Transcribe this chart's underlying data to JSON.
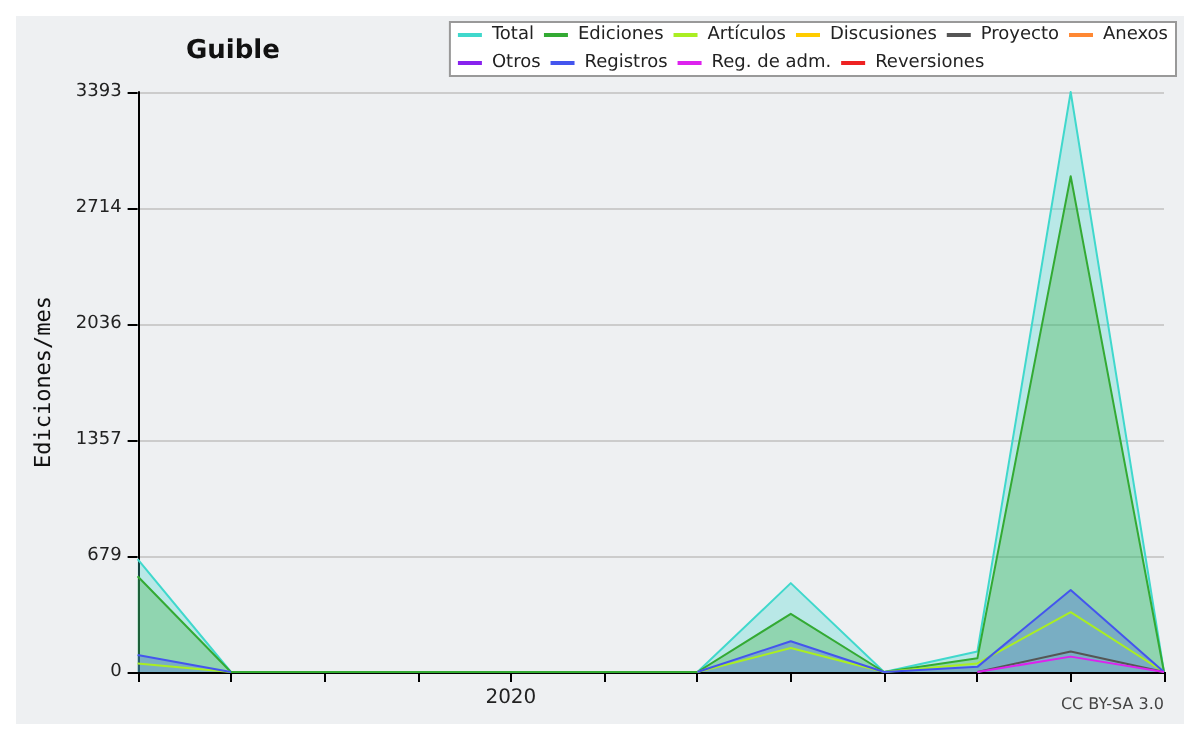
{
  "chart_data": {
    "type": "area",
    "title": "Guible",
    "ylabel": "Ediciones/mes",
    "annotations": [
      "CC BY-SA 3.0"
    ],
    "categories": [
      null,
      null,
      null,
      null,
      "2020",
      null,
      null,
      null,
      null,
      null,
      null,
      null
    ],
    "ylim": [
      0,
      3393
    ],
    "yticks": [
      0,
      679,
      1357,
      2036,
      2714,
      3393
    ],
    "grid": "y",
    "legend": "top right",
    "marker": "none",
    "series": [
      {
        "name": "Total",
        "color": "#40d8cc",
        "values": [
          660,
          0,
          0,
          0,
          0,
          0,
          0,
          520,
          0,
          120,
          3393,
          0
        ]
      },
      {
        "name": "Ediciones",
        "color": "#33aa33",
        "values": [
          560,
          0,
          0,
          0,
          0,
          0,
          0,
          340,
          0,
          80,
          2900,
          0
        ]
      },
      {
        "name": "Artículos",
        "type": "line",
        "color": "#aaee22",
        "values": [
          50,
          0,
          null,
          null,
          null,
          null,
          0,
          140,
          0,
          50,
          350,
          0
        ]
      },
      {
        "name": "Discusiones",
        "type": "line",
        "color": "#ffcc00",
        "values": [
          null,
          null,
          null,
          null,
          null,
          null,
          null,
          null,
          null,
          null,
          null,
          null
        ]
      },
      {
        "name": "Proyecto",
        "type": "line",
        "color": "#555555",
        "values": [
          null,
          null,
          null,
          null,
          null,
          null,
          null,
          null,
          null,
          0,
          120,
          0
        ]
      },
      {
        "name": "Anexos",
        "type": "line",
        "color": "#ff8833",
        "values": [
          null,
          null,
          null,
          null,
          null,
          null,
          null,
          null,
          null,
          null,
          null,
          null
        ]
      },
      {
        "name": "Otros",
        "type": "line",
        "color": "#8822ee",
        "values": [
          null,
          null,
          null,
          null,
          null,
          null,
          null,
          null,
          null,
          null,
          null,
          null
        ]
      },
      {
        "name": "Registros",
        "color": "#4455ee",
        "values": [
          100,
          0,
          null,
          null,
          null,
          null,
          0,
          180,
          0,
          30,
          480,
          0
        ]
      },
      {
        "name": "Reg. de adm.",
        "type": "line",
        "color": "#dd22ee",
        "values": [
          null,
          null,
          null,
          null,
          null,
          null,
          null,
          null,
          null,
          0,
          90,
          0
        ]
      },
      {
        "name": "Reversiones",
        "type": "line",
        "color": "#ee2222",
        "values": [
          null,
          null,
          null,
          null,
          null,
          null,
          null,
          null,
          null,
          null,
          null,
          null
        ]
      }
    ]
  }
}
